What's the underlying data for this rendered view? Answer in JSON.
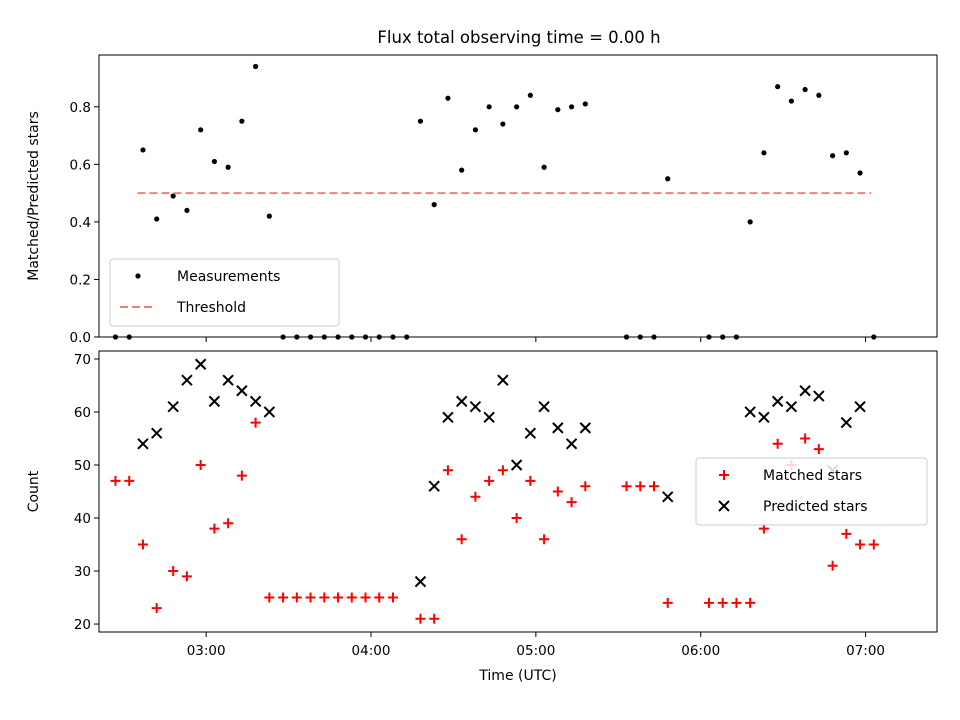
{
  "title": "Flux total observing time = 0.00 h",
  "chart_data": [
    {
      "type": "scatter",
      "panel": "top",
      "title": "Flux total observing time = 0.00 h",
      "xlabel": "",
      "ylabel": "Matched/Predicted stars",
      "xlim": [
        "02:21",
        "07:26"
      ],
      "ylim": [
        0,
        0.98
      ],
      "yticks": [
        0.0,
        0.2,
        0.4,
        0.6,
        0.8
      ],
      "ytick_labels": [
        "0.0",
        "0.2",
        "0.4",
        "0.6",
        "0.8"
      ],
      "legend_position": "lower-left",
      "series": [
        {
          "name": "Measurements",
          "color": "#000000",
          "marker": "point",
          "points": [
            [
              "02:27",
              0.0
            ],
            [
              "02:32",
              0.0
            ],
            [
              "02:37",
              0.65
            ],
            [
              "02:42",
              0.41
            ],
            [
              "02:48",
              0.49
            ],
            [
              "02:53",
              0.44
            ],
            [
              "02:58",
              0.72
            ],
            [
              "03:03",
              0.61
            ],
            [
              "03:08",
              0.59
            ],
            [
              "03:13",
              0.75
            ],
            [
              "03:18",
              0.94
            ],
            [
              "03:23",
              0.42
            ],
            [
              "03:28",
              0.0
            ],
            [
              "03:33",
              0.0
            ],
            [
              "03:38",
              0.0
            ],
            [
              "03:43",
              0.0
            ],
            [
              "03:48",
              0.0
            ],
            [
              "03:53",
              0.0
            ],
            [
              "03:58",
              0.0
            ],
            [
              "04:03",
              0.0
            ],
            [
              "04:08",
              0.0
            ],
            [
              "04:13",
              0.0
            ],
            [
              "04:18",
              0.75
            ],
            [
              "04:23",
              0.46
            ],
            [
              "04:28",
              0.83
            ],
            [
              "04:33",
              0.58
            ],
            [
              "04:38",
              0.72
            ],
            [
              "04:43",
              0.8
            ],
            [
              "04:48",
              0.74
            ],
            [
              "04:53",
              0.8
            ],
            [
              "04:58",
              0.84
            ],
            [
              "05:03",
              0.59
            ],
            [
              "05:08",
              0.79
            ],
            [
              "05:13",
              0.8
            ],
            [
              "05:18",
              0.81
            ],
            [
              "05:33",
              0.0
            ],
            [
              "05:38",
              0.0
            ],
            [
              "05:43",
              0.0
            ],
            [
              "05:48",
              0.55
            ],
            [
              "06:03",
              0.0
            ],
            [
              "06:08",
              0.0
            ],
            [
              "06:13",
              0.0
            ],
            [
              "06:18",
              0.4
            ],
            [
              "06:23",
              0.64
            ],
            [
              "06:28",
              0.87
            ],
            [
              "06:33",
              0.82
            ],
            [
              "06:38",
              0.86
            ],
            [
              "06:43",
              0.84
            ],
            [
              "06:48",
              0.63
            ],
            [
              "06:53",
              0.64
            ],
            [
              "06:58",
              0.57
            ],
            [
              "07:03",
              0.0
            ]
          ]
        },
        {
          "name": "Threshold",
          "color": "#f08080",
          "style": "dashed",
          "points": [
            [
              "02:35",
              0.5
            ],
            [
              "07:02",
              0.5
            ]
          ]
        }
      ]
    },
    {
      "type": "scatter",
      "panel": "bottom",
      "xlabel": "Time (UTC)",
      "ylabel": "Count",
      "xlim": [
        "02:21",
        "07:26"
      ],
      "ylim": [
        18.5,
        71.5
      ],
      "yticks": [
        20,
        30,
        40,
        50,
        60,
        70
      ],
      "ytick_labels": [
        "20",
        "30",
        "40",
        "50",
        "60",
        "70"
      ],
      "xticks": [
        "03:00",
        "04:00",
        "05:00",
        "06:00",
        "07:00"
      ],
      "xtick_labels": [
        "03:00",
        "04:00",
        "05:00",
        "06:00",
        "07:00"
      ],
      "legend_position": "center-right",
      "series": [
        {
          "name": "Matched stars",
          "color": "#ff0000",
          "marker": "plus",
          "points": [
            [
              "02:27",
              47
            ],
            [
              "02:32",
              47
            ],
            [
              "02:37",
              35
            ],
            [
              "02:42",
              23
            ],
            [
              "02:48",
              30
            ],
            [
              "02:53",
              29
            ],
            [
              "02:58",
              50
            ],
            [
              "03:03",
              38
            ],
            [
              "03:08",
              39
            ],
            [
              "03:13",
              48
            ],
            [
              "03:18",
              58
            ],
            [
              "03:23",
              25
            ],
            [
              "03:28",
              25
            ],
            [
              "03:33",
              25
            ],
            [
              "03:38",
              25
            ],
            [
              "03:43",
              25
            ],
            [
              "03:48",
              25
            ],
            [
              "03:53",
              25
            ],
            [
              "03:58",
              25
            ],
            [
              "04:03",
              25
            ],
            [
              "04:08",
              25
            ],
            [
              "04:18",
              21
            ],
            [
              "04:23",
              21
            ],
            [
              "04:28",
              49
            ],
            [
              "04:33",
              36
            ],
            [
              "04:38",
              44
            ],
            [
              "04:43",
              47
            ],
            [
              "04:48",
              49
            ],
            [
              "04:53",
              40
            ],
            [
              "04:58",
              47
            ],
            [
              "05:03",
              36
            ],
            [
              "05:08",
              45
            ],
            [
              "05:13",
              43
            ],
            [
              "05:18",
              46
            ],
            [
              "05:33",
              46
            ],
            [
              "05:38",
              46
            ],
            [
              "05:43",
              46
            ],
            [
              "05:48",
              24
            ],
            [
              "06:03",
              24
            ],
            [
              "06:08",
              24
            ],
            [
              "06:13",
              24
            ],
            [
              "06:18",
              24
            ],
            [
              "06:23",
              38
            ],
            [
              "06:28",
              54
            ],
            [
              "06:33",
              50
            ],
            [
              "06:38",
              55
            ],
            [
              "06:43",
              53
            ],
            [
              "06:48",
              31
            ],
            [
              "06:53",
              37
            ],
            [
              "06:58",
              35
            ],
            [
              "07:03",
              35
            ]
          ]
        },
        {
          "name": "Predicted stars",
          "color": "#000000",
          "marker": "x",
          "points": [
            [
              "02:37",
              54
            ],
            [
              "02:42",
              56
            ],
            [
              "02:48",
              61
            ],
            [
              "02:53",
              66
            ],
            [
              "02:58",
              69
            ],
            [
              "03:03",
              62
            ],
            [
              "03:08",
              66
            ],
            [
              "03:13",
              64
            ],
            [
              "03:18",
              62
            ],
            [
              "03:23",
              60
            ],
            [
              "04:18",
              28
            ],
            [
              "04:23",
              46
            ],
            [
              "04:28",
              59
            ],
            [
              "04:33",
              62
            ],
            [
              "04:38",
              61
            ],
            [
              "04:43",
              59
            ],
            [
              "04:48",
              66
            ],
            [
              "04:53",
              50
            ],
            [
              "04:58",
              56
            ],
            [
              "05:03",
              61
            ],
            [
              "05:08",
              57
            ],
            [
              "05:13",
              54
            ],
            [
              "05:18",
              57
            ],
            [
              "05:48",
              44
            ],
            [
              "06:18",
              60
            ],
            [
              "06:23",
              59
            ],
            [
              "06:28",
              62
            ],
            [
              "06:33",
              61
            ],
            [
              "06:38",
              64
            ],
            [
              "06:43",
              63
            ],
            [
              "06:48",
              49
            ],
            [
              "06:53",
              58
            ],
            [
              "06:58",
              61
            ]
          ]
        }
      ]
    }
  ]
}
